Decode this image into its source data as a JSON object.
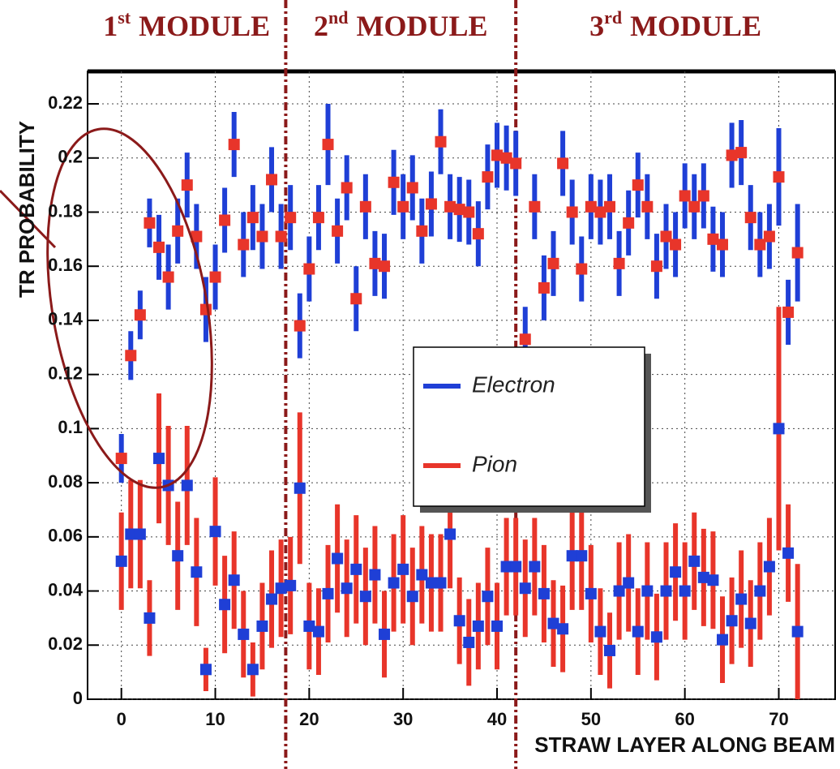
{
  "chart_data": {
    "type": "errorbar-scatter",
    "x_label": "STRAW LAYER ALONG BEAM",
    "y_label": "TR PROBABILITY",
    "modules": [
      {
        "ordinal": "1",
        "suffix": "st",
        "label": "MODULE"
      },
      {
        "ordinal": "2",
        "suffix": "nd",
        "label": "MODULE"
      },
      {
        "ordinal": "3",
        "suffix": "rd",
        "label": "MODULE"
      }
    ],
    "module_boundaries": [
      17.5,
      42
    ],
    "xlim": [
      -3.6,
      76
    ],
    "ylim": [
      0,
      0.232
    ],
    "xticks": [
      0,
      10,
      20,
      30,
      40,
      50,
      60,
      70
    ],
    "yticks": [
      0,
      0.02,
      0.04,
      0.06,
      0.08,
      0.1,
      0.12,
      0.14,
      0.16,
      0.18,
      0.2,
      0.22
    ],
    "grid": true,
    "x": [
      0,
      1,
      2,
      3,
      4,
      5,
      6,
      7,
      8,
      9,
      10,
      11,
      12,
      13,
      14,
      15,
      16,
      17,
      18,
      19,
      20,
      21,
      22,
      23,
      24,
      25,
      26,
      27,
      28,
      29,
      30,
      31,
      32,
      33,
      34,
      35,
      36,
      37,
      38,
      39,
      40,
      41,
      42,
      43,
      44,
      45,
      46,
      47,
      48,
      49,
      50,
      51,
      52,
      53,
      54,
      55,
      56,
      57,
      58,
      59,
      60,
      61,
      62,
      63,
      64,
      65,
      66,
      67,
      68,
      69,
      70,
      71,
      72
    ],
    "series": [
      {
        "name": "Electron",
        "color": "#1f3fd6",
        "marker_color": "#e8352a",
        "values": [
          0.089,
          0.127,
          0.142,
          0.176,
          0.167,
          0.156,
          0.173,
          0.19,
          0.171,
          0.144,
          0.156,
          0.177,
          0.205,
          0.168,
          0.178,
          0.171,
          0.192,
          0.171,
          0.178,
          0.138,
          0.159,
          0.178,
          0.205,
          0.173,
          0.189,
          0.148,
          0.182,
          0.161,
          0.16,
          0.191,
          0.182,
          0.189,
          0.173,
          0.183,
          0.206,
          0.182,
          0.181,
          0.18,
          0.172,
          0.193,
          0.201,
          0.2,
          0.198,
          0.133,
          0.182,
          0.152,
          0.161,
          0.198,
          0.18,
          0.159,
          0.182,
          0.18,
          0.182,
          0.161,
          0.176,
          0.19,
          0.182,
          0.16,
          0.171,
          0.168,
          0.186,
          0.182,
          0.186,
          0.17,
          0.168,
          0.201,
          0.202,
          0.178,
          0.168,
          0.171,
          0.193,
          0.143,
          0.165
        ],
        "errors": [
          0.009,
          0.009,
          0.009,
          0.009,
          0.012,
          0.012,
          0.012,
          0.012,
          0.012,
          0.012,
          0.012,
          0.012,
          0.012,
          0.012,
          0.012,
          0.012,
          0.012,
          0.012,
          0.012,
          0.012,
          0.012,
          0.012,
          0.015,
          0.012,
          0.012,
          0.012,
          0.012,
          0.012,
          0.012,
          0.012,
          0.012,
          0.012,
          0.012,
          0.012,
          0.012,
          0.012,
          0.012,
          0.012,
          0.012,
          0.012,
          0.012,
          0.012,
          0.012,
          0.012,
          0.012,
          0.012,
          0.012,
          0.012,
          0.012,
          0.012,
          0.012,
          0.012,
          0.012,
          0.012,
          0.012,
          0.012,
          0.012,
          0.012,
          0.012,
          0.012,
          0.012,
          0.012,
          0.012,
          0.012,
          0.012,
          0.012,
          0.012,
          0.012,
          0.012,
          0.012,
          0.018,
          0.012,
          0.018
        ]
      },
      {
        "name": "Pion",
        "color": "#e8352a",
        "marker_color": "#1f3fd6",
        "values": [
          0.051,
          0.061,
          0.061,
          0.03,
          0.089,
          0.079,
          0.053,
          0.079,
          0.047,
          0.011,
          0.062,
          0.035,
          0.044,
          0.024,
          0.011,
          0.027,
          0.037,
          0.041,
          0.042,
          0.078,
          0.027,
          0.025,
          0.039,
          0.052,
          0.041,
          0.048,
          0.038,
          0.046,
          0.024,
          0.043,
          0.048,
          0.038,
          0.046,
          0.043,
          0.043,
          0.061,
          0.029,
          0.021,
          0.027,
          0.038,
          0.027,
          0.049,
          0.049,
          0.041,
          0.049,
          0.039,
          0.028,
          0.026,
          0.053,
          0.053,
          0.039,
          0.025,
          0.018,
          0.04,
          0.043,
          0.025,
          0.04,
          0.023,
          0.04,
          0.047,
          0.04,
          0.051,
          0.045,
          0.044,
          0.022,
          0.029,
          0.037,
          0.028,
          0.04,
          0.049,
          0.1,
          0.054,
          0.025
        ],
        "errors": [
          0.018,
          0.02,
          0.02,
          0.014,
          0.024,
          0.022,
          0.02,
          0.022,
          0.02,
          0.008,
          0.02,
          0.018,
          0.018,
          0.016,
          0.01,
          0.016,
          0.018,
          0.018,
          0.018,
          0.028,
          0.016,
          0.016,
          0.018,
          0.02,
          0.018,
          0.02,
          0.018,
          0.018,
          0.016,
          0.018,
          0.02,
          0.018,
          0.018,
          0.018,
          0.018,
          0.02,
          0.016,
          0.016,
          0.016,
          0.018,
          0.016,
          0.018,
          0.018,
          0.018,
          0.018,
          0.018,
          0.016,
          0.016,
          0.02,
          0.02,
          0.018,
          0.016,
          0.014,
          0.018,
          0.018,
          0.016,
          0.018,
          0.016,
          0.018,
          0.018,
          0.018,
          0.018,
          0.018,
          0.018,
          0.016,
          0.016,
          0.018,
          0.016,
          0.018,
          0.018,
          0.045,
          0.018,
          0.025
        ]
      }
    ],
    "legend_position": "center"
  }
}
